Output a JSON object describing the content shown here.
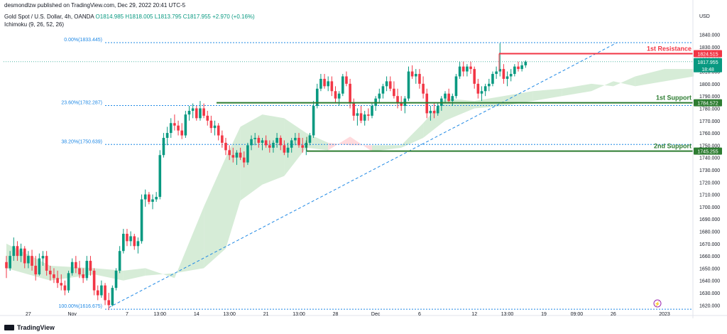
{
  "header": {
    "publisher": "desmondlzw published on TradingView.com, Dec 29, 2022 20:41 UTC-5",
    "symbol": "Gold Spot / U.S. Dollar, 4h, OANDA",
    "ohlc": "O1814.985 H1818.005 L1813.795 C1817.955 +2.970 (+0.16%)",
    "indicator": "Ichimoku (9, 26, 52, 26)"
  },
  "branding": {
    "logo_text": "TradingView",
    "logo_icon": "tradingview-logo-icon"
  },
  "colors": {
    "up": "#089981",
    "down": "#f23645",
    "support": "#2e7d32",
    "resistance": "#f23645",
    "fib": "#1e88e5",
    "cloud_green": "#c8e6c9",
    "cloud_red": "#ffcdd2",
    "price_label": "#089981",
    "resistance_label": "#f23645",
    "support_label": "#2e7d32"
  },
  "chart_data": {
    "type": "candlestick",
    "title": "",
    "currency_label": "USD",
    "ylim": [
      1615,
      1845
    ],
    "y_ticks": [
      1620,
      1630,
      1640,
      1650,
      1660,
      1670,
      1680,
      1690,
      1700,
      1710,
      1720,
      1730,
      1740,
      1750,
      1760,
      1770,
      1780,
      1790,
      1800,
      1810,
      1820,
      1830,
      1840
    ],
    "x_ticks": [
      {
        "label": "27",
        "i": 6
      },
      {
        "label": "Nov",
        "i": 18
      },
      {
        "label": "7",
        "i": 33
      },
      {
        "label": "13:00",
        "i": 42
      },
      {
        "label": "14",
        "i": 52
      },
      {
        "label": "13:00",
        "i": 61
      },
      {
        "label": "21",
        "i": 71
      },
      {
        "label": "13:00",
        "i": 80
      },
      {
        "label": "28",
        "i": 90
      },
      {
        "label": "Dec",
        "i": 101
      },
      {
        "label": "6",
        "i": 113
      },
      {
        "label": "12",
        "i": 128
      },
      {
        "label": "13:00",
        "i": 137
      },
      {
        "label": "19",
        "i": 147
      },
      {
        "label": "09:00",
        "i": 156
      },
      {
        "label": "26",
        "i": 166
      },
      {
        "label": "2023",
        "i": 180
      }
    ],
    "fibonacci": [
      {
        "label": "0.00%(1833.445)",
        "price": 1833.445
      },
      {
        "label": "23.60%(1782.287)",
        "price": 1782.287
      },
      {
        "label": "38.20%(1750.639)",
        "price": 1750.639
      },
      {
        "label": "100.00%(1616.675)",
        "price": 1616.675
      }
    ],
    "levels": [
      {
        "name": "1st Resistance",
        "price": 1824.515,
        "label": "1824.515",
        "kind": "resistance"
      },
      {
        "name": "1st Support",
        "price": 1784.572,
        "label": "1784.572",
        "kind": "support"
      },
      {
        "name": "2nd Support",
        "price": 1745.255,
        "label": "1745.255",
        "kind": "support"
      }
    ],
    "last_price": {
      "price": 1817.955,
      "label": "1817.955",
      "countdown": "18:48"
    },
    "trendline": {
      "from": {
        "i": 28,
        "price": 1618
      },
      "to": {
        "i": 167,
        "price": 1833.445
      }
    },
    "candles": [
      [
        1655,
        1660,
        1642,
        1650
      ],
      [
        1650,
        1664,
        1648,
        1660
      ],
      [
        1660,
        1675,
        1656,
        1668
      ],
      [
        1668,
        1672,
        1656,
        1660
      ],
      [
        1660,
        1670,
        1655,
        1666
      ],
      [
        1666,
        1668,
        1650,
        1654
      ],
      [
        1654,
        1664,
        1650,
        1660
      ],
      [
        1660,
        1665,
        1648,
        1652
      ],
      [
        1652,
        1660,
        1640,
        1645
      ],
      [
        1645,
        1662,
        1644,
        1658
      ],
      [
        1658,
        1664,
        1652,
        1660
      ],
      [
        1660,
        1664,
        1644,
        1648
      ],
      [
        1648,
        1652,
        1640,
        1645
      ],
      [
        1645,
        1650,
        1638,
        1642
      ],
      [
        1642,
        1648,
        1634,
        1638
      ],
      [
        1638,
        1645,
        1632,
        1636
      ],
      [
        1636,
        1640,
        1628,
        1632
      ],
      [
        1632,
        1648,
        1630,
        1646
      ],
      [
        1646,
        1658,
        1644,
        1655
      ],
      [
        1655,
        1660,
        1646,
        1650
      ],
      [
        1650,
        1656,
        1642,
        1645
      ],
      [
        1645,
        1650,
        1638,
        1642
      ],
      [
        1642,
        1660,
        1640,
        1656
      ],
      [
        1656,
        1660,
        1644,
        1648
      ],
      [
        1648,
        1650,
        1628,
        1632
      ],
      [
        1632,
        1636,
        1624,
        1628
      ],
      [
        1628,
        1640,
        1626,
        1636
      ],
      [
        1636,
        1638,
        1620,
        1624
      ],
      [
        1624,
        1630,
        1616,
        1620
      ],
      [
        1620,
        1636,
        1619,
        1634
      ],
      [
        1634,
        1650,
        1632,
        1648
      ],
      [
        1648,
        1668,
        1646,
        1664
      ],
      [
        1664,
        1682,
        1662,
        1678
      ],
      [
        1678,
        1682,
        1668,
        1672
      ],
      [
        1672,
        1680,
        1668,
        1676
      ],
      [
        1676,
        1678,
        1665,
        1668
      ],
      [
        1668,
        1675,
        1662,
        1672
      ],
      [
        1672,
        1710,
        1670,
        1706
      ],
      [
        1706,
        1714,
        1700,
        1710
      ],
      [
        1710,
        1712,
        1702,
        1704
      ],
      [
        1704,
        1710,
        1698,
        1706
      ],
      [
        1706,
        1712,
        1704,
        1708
      ],
      [
        1708,
        1746,
        1706,
        1742
      ],
      [
        1742,
        1760,
        1740,
        1756
      ],
      [
        1756,
        1765,
        1750,
        1760
      ],
      [
        1760,
        1772,
        1756,
        1768
      ],
      [
        1768,
        1775,
        1762,
        1766
      ],
      [
        1766,
        1770,
        1758,
        1762
      ],
      [
        1762,
        1768,
        1755,
        1758
      ],
      [
        1758,
        1778,
        1756,
        1775
      ],
      [
        1775,
        1782,
        1770,
        1778
      ],
      [
        1778,
        1784,
        1772,
        1780
      ],
      [
        1780,
        1782,
        1770,
        1772
      ],
      [
        1772,
        1786,
        1770,
        1780
      ],
      [
        1780,
        1784,
        1772,
        1774
      ],
      [
        1774,
        1778,
        1766,
        1770
      ],
      [
        1770,
        1774,
        1760,
        1764
      ],
      [
        1764,
        1770,
        1758,
        1766
      ],
      [
        1766,
        1768,
        1754,
        1758
      ],
      [
        1758,
        1762,
        1748,
        1752
      ],
      [
        1752,
        1756,
        1742,
        1746
      ],
      [
        1746,
        1750,
        1738,
        1742
      ],
      [
        1742,
        1748,
        1736,
        1740
      ],
      [
        1740,
        1746,
        1734,
        1744
      ],
      [
        1744,
        1748,
        1738,
        1740
      ],
      [
        1740,
        1745,
        1732,
        1736
      ],
      [
        1736,
        1752,
        1734,
        1750
      ],
      [
        1750,
        1758,
        1746,
        1755
      ],
      [
        1755,
        1760,
        1750,
        1756
      ],
      [
        1756,
        1758,
        1748,
        1752
      ],
      [
        1752,
        1756,
        1746,
        1754
      ],
      [
        1754,
        1758,
        1748,
        1750
      ],
      [
        1750,
        1754,
        1744,
        1748
      ],
      [
        1748,
        1754,
        1744,
        1752
      ],
      [
        1752,
        1760,
        1748,
        1756
      ],
      [
        1756,
        1758,
        1746,
        1750
      ],
      [
        1750,
        1754,
        1742,
        1744
      ],
      [
        1744,
        1752,
        1740,
        1748
      ],
      [
        1748,
        1756,
        1744,
        1754
      ],
      [
        1754,
        1760,
        1750,
        1756
      ],
      [
        1756,
        1760,
        1748,
        1750
      ],
      [
        1750,
        1756,
        1744,
        1748
      ],
      [
        1748,
        1754,
        1742,
        1752
      ],
      [
        1752,
        1760,
        1750,
        1758
      ],
      [
        1758,
        1786,
        1756,
        1782
      ],
      [
        1782,
        1800,
        1780,
        1796
      ],
      [
        1796,
        1808,
        1794,
        1804
      ],
      [
        1804,
        1808,
        1796,
        1798
      ],
      [
        1798,
        1806,
        1794,
        1802
      ],
      [
        1802,
        1806,
        1790,
        1794
      ],
      [
        1794,
        1798,
        1784,
        1788
      ],
      [
        1788,
        1794,
        1782,
        1792
      ],
      [
        1792,
        1808,
        1790,
        1806
      ],
      [
        1806,
        1810,
        1798,
        1800
      ],
      [
        1800,
        1804,
        1780,
        1784
      ],
      [
        1784,
        1788,
        1770,
        1774
      ],
      [
        1774,
        1780,
        1766,
        1776
      ],
      [
        1776,
        1782,
        1768,
        1770
      ],
      [
        1770,
        1778,
        1766,
        1775
      ],
      [
        1775,
        1780,
        1770,
        1774
      ],
      [
        1774,
        1784,
        1772,
        1782
      ],
      [
        1782,
        1790,
        1778,
        1788
      ],
      [
        1788,
        1796,
        1784,
        1792
      ],
      [
        1792,
        1800,
        1788,
        1798
      ],
      [
        1798,
        1806,
        1794,
        1802
      ],
      [
        1802,
        1806,
        1794,
        1796
      ],
      [
        1796,
        1802,
        1788,
        1790
      ],
      [
        1790,
        1796,
        1780,
        1784
      ],
      [
        1784,
        1790,
        1778,
        1782
      ],
      [
        1782,
        1790,
        1776,
        1788
      ],
      [
        1788,
        1814,
        1786,
        1810
      ],
      [
        1810,
        1815,
        1804,
        1806
      ],
      [
        1806,
        1812,
        1800,
        1808
      ],
      [
        1808,
        1812,
        1796,
        1800
      ],
      [
        1800,
        1806,
        1788,
        1792
      ],
      [
        1792,
        1796,
        1772,
        1776
      ],
      [
        1776,
        1782,
        1770,
        1778
      ],
      [
        1778,
        1784,
        1772,
        1776
      ],
      [
        1776,
        1784,
        1774,
        1782
      ],
      [
        1782,
        1790,
        1778,
        1788
      ],
      [
        1788,
        1794,
        1784,
        1792
      ],
      [
        1792,
        1796,
        1784,
        1786
      ],
      [
        1786,
        1792,
        1782,
        1790
      ],
      [
        1790,
        1808,
        1788,
        1806
      ],
      [
        1806,
        1818,
        1804,
        1814
      ],
      [
        1814,
        1818,
        1806,
        1810
      ],
      [
        1810,
        1816,
        1806,
        1814
      ],
      [
        1814,
        1818,
        1808,
        1812
      ],
      [
        1812,
        1814,
        1796,
        1800
      ],
      [
        1800,
        1804,
        1788,
        1792
      ],
      [
        1792,
        1798,
        1786,
        1794
      ],
      [
        1794,
        1800,
        1790,
        1798
      ],
      [
        1798,
        1804,
        1794,
        1800
      ],
      [
        1800,
        1810,
        1798,
        1808
      ],
      [
        1808,
        1814,
        1804,
        1810
      ],
      [
        1810,
        1833,
        1806,
        1812
      ],
      [
        1812,
        1816,
        1800,
        1804
      ],
      [
        1804,
        1810,
        1798,
        1806
      ],
      [
        1806,
        1812,
        1802,
        1808
      ],
      [
        1808,
        1816,
        1806,
        1814
      ],
      [
        1814,
        1818,
        1810,
        1812
      ],
      [
        1812,
        1818,
        1810,
        1815
      ],
      [
        1815,
        1819,
        1813,
        1818
      ]
    ],
    "cloud": [
      {
        "i": 0,
        "a": 1670,
        "b": 1650
      },
      {
        "i": 12,
        "a": 1652,
        "b": 1640
      },
      {
        "i": 24,
        "a": 1650,
        "b": 1645
      },
      {
        "i": 32,
        "a": 1648,
        "b": 1640
      },
      {
        "i": 38,
        "a": 1650,
        "b": 1644
      },
      {
        "i": 46,
        "a": 1642,
        "b": 1646
      },
      {
        "i": 54,
        "a": 1700,
        "b": 1650
      },
      {
        "i": 60,
        "a": 1740,
        "b": 1666
      },
      {
        "i": 64,
        "a": 1765,
        "b": 1705
      },
      {
        "i": 70,
        "a": 1775,
        "b": 1718
      },
      {
        "i": 76,
        "a": 1772,
        "b": 1725
      },
      {
        "i": 82,
        "a": 1760,
        "b": 1748
      },
      {
        "i": 88,
        "a": 1752,
        "b": 1746
      },
      {
        "i": 94,
        "a": 1750,
        "b": 1757
      },
      {
        "i": 100,
        "a": 1750,
        "b": 1745
      },
      {
        "i": 108,
        "a": 1750,
        "b": 1748
      },
      {
        "i": 114,
        "a": 1768,
        "b": 1756
      },
      {
        "i": 120,
        "a": 1788,
        "b": 1770
      },
      {
        "i": 128,
        "a": 1786,
        "b": 1780
      },
      {
        "i": 136,
        "a": 1790,
        "b": 1782
      },
      {
        "i": 144,
        "a": 1794,
        "b": 1786
      },
      {
        "i": 152,
        "a": 1796,
        "b": 1790
      },
      {
        "i": 160,
        "a": 1800,
        "b": 1794
      },
      {
        "i": 166,
        "a": 1798,
        "b": 1802
      },
      {
        "i": 172,
        "a": 1806,
        "b": 1798
      },
      {
        "i": 180,
        "a": 1812,
        "b": 1802
      },
      {
        "i": 188,
        "a": 1812,
        "b": 1806
      }
    ]
  }
}
